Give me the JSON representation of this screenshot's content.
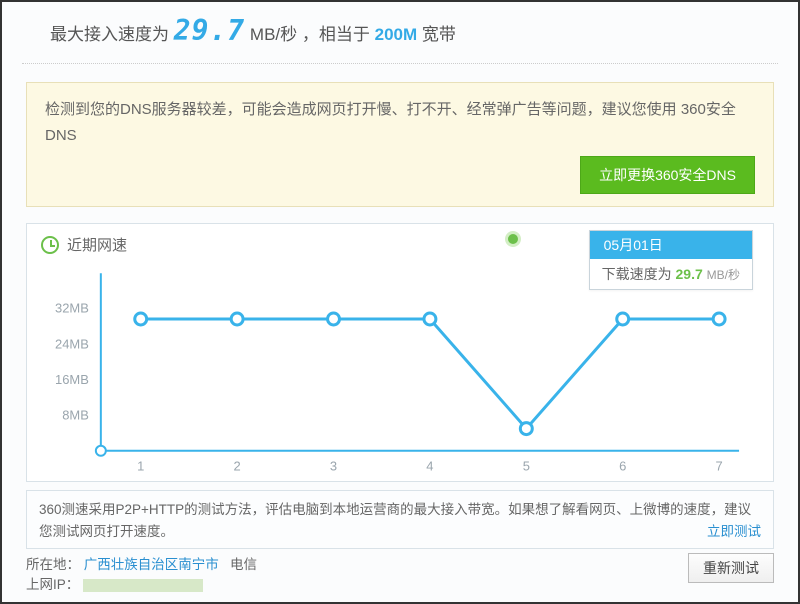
{
  "header": {
    "prefix": "最大接入速度为",
    "speed_value": "29.7",
    "speed_unit": "MB/秒",
    "equiv_prefix": "，相当于",
    "bandwidth": "200M",
    "bandwidth_suffix": "宽带"
  },
  "warning": {
    "text": "检测到您的DNS服务器较差，可能会造成网页打开慢、打不开、经常弹广告等问题，建议您使用 360安全DNS",
    "button_label": "立即更换360安全DNS"
  },
  "chart": {
    "title": "近期网速",
    "y_labels": [
      "32MB",
      "24MB",
      "16MB",
      "8MB"
    ],
    "y_values": [
      32,
      24,
      16,
      8
    ],
    "x_labels": [
      "1",
      "2",
      "3",
      "4",
      "5",
      "6",
      "7"
    ],
    "values": [
      29.7,
      29.7,
      29.7,
      29.7,
      5,
      29.7,
      29.7
    ],
    "y_max": 40,
    "line_color": "#39b3ea",
    "marker_fill": "#ffffff",
    "marker_stroke": "#39b3ea",
    "axis_color": "#39b3ea",
    "label_color": "#9aa5ad",
    "label_fontsize": 13
  },
  "tooltip": {
    "date": "05月01日",
    "label": "下载速度为",
    "speed": "29.7",
    "unit": "MB/秒"
  },
  "info": {
    "line1": "360测速采用P2P+HTTP的测试方法，评估电脑到本地运营商的最大接入带宽。如果想了解看网页、上微博的速度，建议您测试网页打开速度。",
    "link": "立即测试"
  },
  "bottom": {
    "location_label": "所在地：",
    "location_value": "广西壮族自治区南宁市",
    "isp": "电信",
    "ip_label": "上网IP：",
    "retest_label": "重新测试"
  }
}
